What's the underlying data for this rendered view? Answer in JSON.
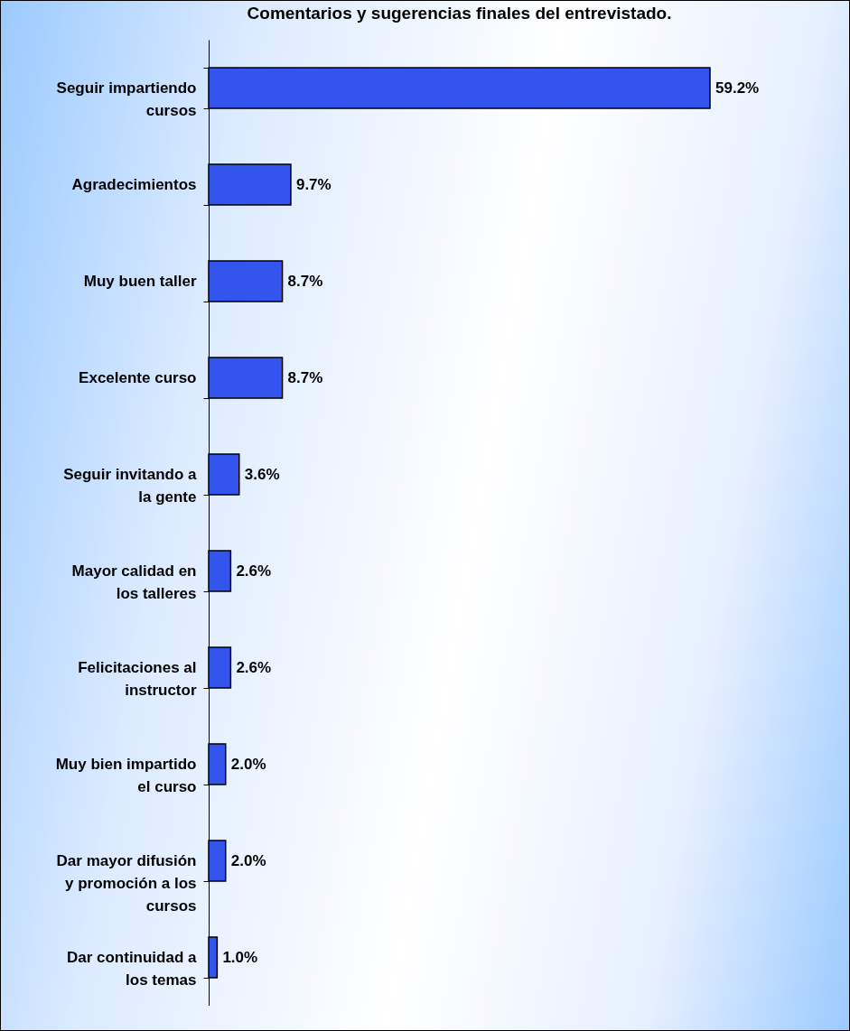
{
  "chart_data": {
    "type": "bar",
    "orientation": "horizontal",
    "title": "Comentarios y sugerencias finales del entrevistado.",
    "categories": [
      "Seguir impartiendo cursos",
      "Agradecimientos",
      "Muy buen taller",
      "Excelente curso",
      "Seguir invitando a la gente",
      "Mayor calidad en los talleres",
      "Felicitaciones al instructor",
      "Muy bien impartido el curso",
      "Dar mayor difusión y promoción a los cursos",
      "Dar continuidad a los temas"
    ],
    "values": [
      59.2,
      9.7,
      8.7,
      8.7,
      3.6,
      2.6,
      2.6,
      2.0,
      2.0,
      1.0
    ],
    "value_labels": [
      "59.2%",
      "9.7%",
      "8.7%",
      "8.7%",
      "3.6%",
      "2.6%",
      "2.6%",
      "2.0%",
      "2.0%",
      "1.0%"
    ],
    "color": "#3355ee",
    "grid": false,
    "tick_labels": "y"
  }
}
